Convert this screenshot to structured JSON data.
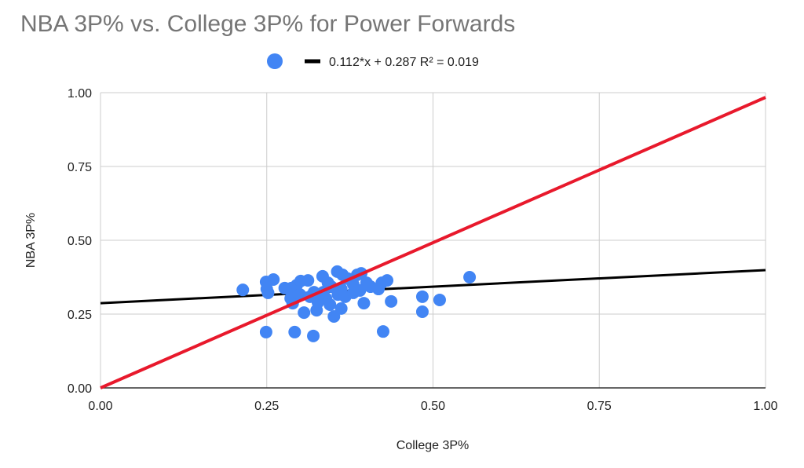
{
  "chart_data": {
    "type": "scatter",
    "title": "NBA 3P% vs. College 3P% for Power Forwards",
    "xlabel": "College 3P%",
    "ylabel": "NBA 3P%",
    "xlim": [
      0,
      1
    ],
    "ylim": [
      0,
      1
    ],
    "x_ticks": [
      "0.00",
      "0.25",
      "0.50",
      "0.75",
      "1.00"
    ],
    "y_ticks": [
      "0.00",
      "0.25",
      "0.50",
      "0.75",
      "1.00"
    ],
    "grid": true,
    "legend_position": "top",
    "legend": [
      "",
      "0.112*x + 0.287 R² = 0.019"
    ],
    "colors": {
      "points": "#4285f4",
      "trendline": "#000000",
      "reference": "#e8192c",
      "grid": "#cccccc",
      "title": "#757575"
    },
    "trendline": {
      "slope": 0.112,
      "intercept": 0.287,
      "r2": 0.019
    },
    "reference_line": {
      "slope": 1,
      "intercept": 0
    },
    "points": [
      [
        0.214,
        0.332
      ],
      [
        0.249,
        0.359
      ],
      [
        0.25,
        0.335
      ],
      [
        0.252,
        0.322
      ],
      [
        0.26,
        0.367
      ],
      [
        0.249,
        0.189
      ],
      [
        0.292,
        0.189
      ],
      [
        0.32,
        0.176
      ],
      [
        0.425,
        0.191
      ],
      [
        0.484,
        0.258
      ],
      [
        0.484,
        0.309
      ],
      [
        0.51,
        0.298
      ],
      [
        0.555,
        0.375
      ],
      [
        0.437,
        0.293
      ],
      [
        0.431,
        0.364
      ],
      [
        0.423,
        0.356
      ],
      [
        0.418,
        0.335
      ],
      [
        0.396,
        0.287
      ],
      [
        0.351,
        0.242
      ],
      [
        0.362,
        0.269
      ],
      [
        0.306,
        0.255
      ],
      [
        0.325,
        0.263
      ],
      [
        0.277,
        0.338
      ],
      [
        0.287,
        0.338
      ],
      [
        0.295,
        0.348
      ],
      [
        0.301,
        0.362
      ],
      [
        0.312,
        0.364
      ],
      [
        0.286,
        0.303
      ],
      [
        0.289,
        0.287
      ],
      [
        0.3,
        0.316
      ],
      [
        0.315,
        0.309
      ],
      [
        0.321,
        0.324
      ],
      [
        0.327,
        0.29
      ],
      [
        0.334,
        0.378
      ],
      [
        0.342,
        0.356
      ],
      [
        0.347,
        0.343
      ],
      [
        0.356,
        0.394
      ],
      [
        0.364,
        0.383
      ],
      [
        0.372,
        0.37
      ],
      [
        0.38,
        0.351
      ],
      [
        0.386,
        0.383
      ],
      [
        0.392,
        0.388
      ],
      [
        0.4,
        0.356
      ],
      [
        0.406,
        0.343
      ],
      [
        0.357,
        0.316
      ],
      [
        0.368,
        0.309
      ],
      [
        0.38,
        0.322
      ],
      [
        0.339,
        0.303
      ],
      [
        0.345,
        0.282
      ],
      [
        0.39,
        0.33
      ],
      [
        0.362,
        0.335
      ],
      [
        0.335,
        0.324
      ]
    ]
  }
}
